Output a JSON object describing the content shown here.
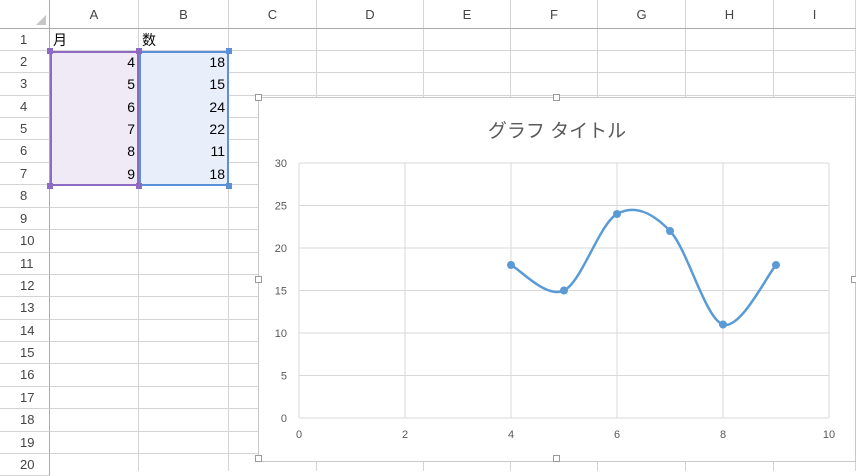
{
  "columns": [
    "A",
    "B",
    "C",
    "D",
    "E",
    "F",
    "G",
    "H",
    "I"
  ],
  "rows": [
    "1",
    "2",
    "3",
    "4",
    "5",
    "6",
    "7",
    "8",
    "9",
    "10",
    "11",
    "12",
    "13",
    "14",
    "15",
    "16",
    "17",
    "18",
    "19",
    "20"
  ],
  "sheet": {
    "headers": {
      "a1": "月",
      "b1": "数"
    },
    "data": [
      {
        "a": "4",
        "b": "18"
      },
      {
        "a": "5",
        "b": "15"
      },
      {
        "a": "6",
        "b": "24"
      },
      {
        "a": "7",
        "b": "22"
      },
      {
        "a": "8",
        "b": "11"
      },
      {
        "a": "9",
        "b": "18"
      }
    ]
  },
  "colors": {
    "series": "#5b9bd5",
    "selA": "#8e6bc2",
    "selB": "#5b8fd8"
  },
  "chart_data": {
    "type": "scatter",
    "title": "グラフ タイトル",
    "x": [
      4,
      5,
      6,
      7,
      8,
      9
    ],
    "series": [
      {
        "values": [
          18,
          15,
          24,
          22,
          11,
          18
        ]
      }
    ],
    "xlim": [
      0,
      10
    ],
    "ylim": [
      0,
      30
    ],
    "xticks": [
      0,
      2,
      4,
      6,
      8,
      10
    ],
    "yticks": [
      0,
      5,
      10,
      15,
      20,
      25,
      30
    ],
    "smooth": true,
    "grid": true,
    "legend": "none"
  }
}
